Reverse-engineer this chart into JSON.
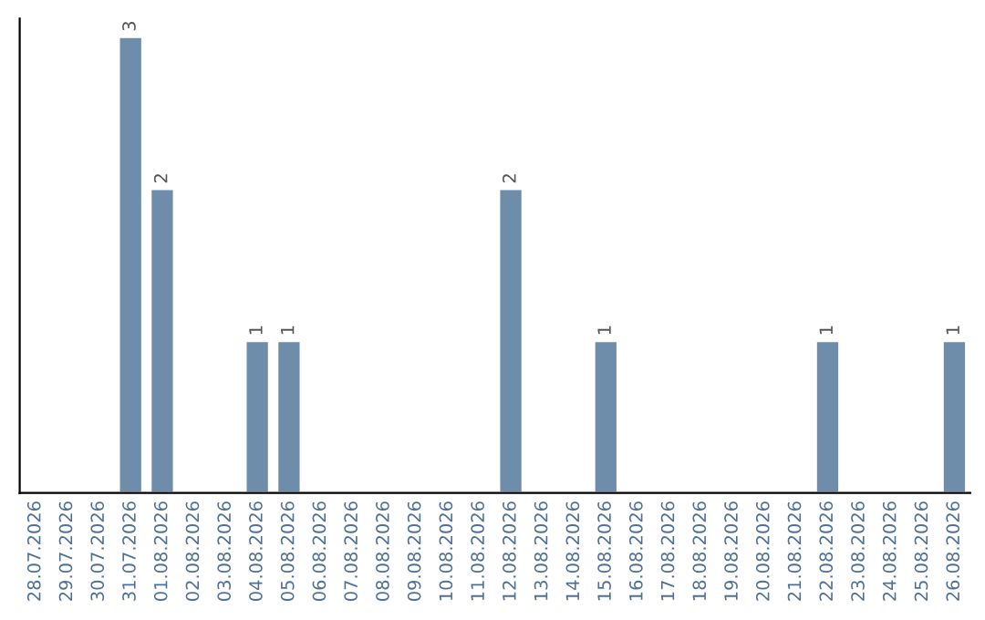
{
  "chart_data": {
    "type": "bar",
    "categories": [
      "28.07.2026",
      "29.07.2026",
      "30.07.2026",
      "31.07.2026",
      "01.08.2026",
      "02.08.2026",
      "03.08.2026",
      "04.08.2026",
      "05.08.2026",
      "06.08.2026",
      "07.08.2026",
      "08.08.2026",
      "09.08.2026",
      "10.08.2026",
      "11.08.2026",
      "12.08.2026",
      "13.08.2026",
      "14.08.2026",
      "15.08.2026",
      "16.08.2026",
      "17.08.2026",
      "18.08.2026",
      "19.08.2026",
      "20.08.2026",
      "21.08.2026",
      "22.08.2026",
      "23.08.2026",
      "24.08.2026",
      "25.08.2026",
      "26.08.2026"
    ],
    "values": [
      null,
      null,
      null,
      3,
      2,
      null,
      null,
      1,
      1,
      null,
      null,
      null,
      null,
      null,
      null,
      2,
      null,
      null,
      1,
      null,
      null,
      null,
      null,
      null,
      null,
      1,
      null,
      null,
      null,
      1
    ],
    "color": "#6d8dab",
    "data_labels": true,
    "grid": false,
    "legend": false
  }
}
